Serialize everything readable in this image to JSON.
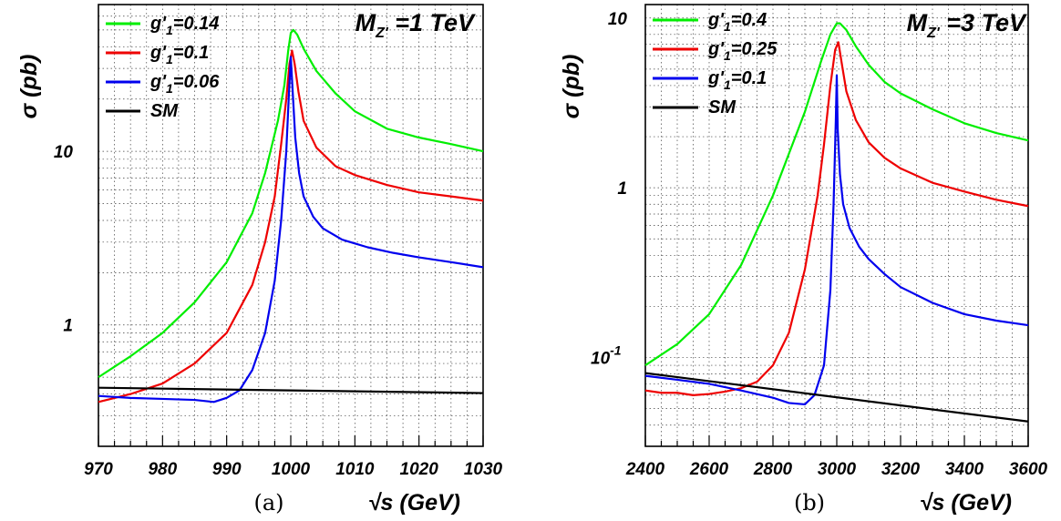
{
  "chart_data": [
    {
      "type": "line",
      "panel_label": "(a)",
      "title_main": "M",
      "title_sub": "Z'",
      "title_rest": " =1 TeV",
      "xlabel": "√s (GeV)",
      "ylabel": "σ (pb)",
      "x_scale": "linear",
      "y_scale": "log",
      "xlim": [
        970,
        1030
      ],
      "ylim": [
        0.2,
        70
      ],
      "x_ticks": [
        "970",
        "980",
        "990",
        "1000",
        "1010",
        "1020",
        "1030"
      ],
      "y_ticks": [
        {
          "value": 1,
          "label": "1"
        },
        {
          "value": 10,
          "label": "10"
        }
      ],
      "grid": true,
      "legend_position": "top-left",
      "series": [
        {
          "name": "g'1=0.14",
          "legend_main": "g'",
          "legend_sub": "1",
          "legend_rest": "=0.14",
          "color": "#00ee00",
          "x": [
            970,
            975,
            980,
            985,
            990,
            994,
            996,
            998,
            999,
            999.6,
            1000,
            1000.4,
            1001,
            1002,
            1004,
            1007,
            1010,
            1015,
            1020,
            1025,
            1030
          ],
          "y": [
            0.5,
            0.66,
            0.9,
            1.35,
            2.3,
            4.4,
            7.5,
            15,
            24,
            38,
            48,
            50,
            47,
            39,
            29,
            21.5,
            17,
            13.5,
            12,
            11,
            10
          ]
        },
        {
          "name": "g'1=0.1",
          "legend_main": "g'",
          "legend_sub": "1",
          "legend_rest": "=0.1",
          "color": "#ee0000",
          "x": [
            970,
            975,
            980,
            985,
            990,
            994,
            996,
            997.5,
            998.5,
            999.3,
            999.8,
            1000.2,
            1000.6,
            1001.2,
            1002,
            1004,
            1007,
            1010,
            1015,
            1020,
            1025,
            1030
          ],
          "y": [
            0.36,
            0.4,
            0.46,
            0.6,
            0.9,
            1.7,
            3,
            5.5,
            11,
            20,
            32,
            38,
            32,
            22,
            15,
            10.5,
            8.2,
            7.3,
            6.4,
            5.8,
            5.5,
            5.2
          ]
        },
        {
          "name": "g'1=0.06",
          "legend_main": "g'",
          "legend_sub": "1",
          "legend_rest": "=0.06",
          "color": "#0000ee",
          "x": [
            970,
            975,
            980,
            985,
            988,
            990,
            992,
            994,
            996,
            997.5,
            998.5,
            999.3,
            999.7,
            1000,
            1000.3,
            1000.7,
            1001.3,
            1002,
            1003.5,
            1005,
            1008,
            1012,
            1016,
            1020,
            1025,
            1030
          ],
          "y": [
            0.39,
            0.38,
            0.375,
            0.37,
            0.36,
            0.38,
            0.42,
            0.55,
            0.9,
            1.8,
            4,
            10,
            21,
            35,
            22,
            12,
            7.5,
            5.5,
            4.2,
            3.6,
            3.1,
            2.8,
            2.6,
            2.45,
            2.3,
            2.15
          ]
        },
        {
          "name": "SM",
          "legend_main": "SM",
          "legend_sub": "",
          "legend_rest": "",
          "color": "#000000",
          "x": [
            970,
            1030
          ],
          "y": [
            0.435,
            0.405
          ]
        }
      ]
    },
    {
      "type": "line",
      "panel_label": "(b)",
      "title_main": "M",
      "title_sub": "Z'",
      "title_rest": " =3 TeV",
      "xlabel": "√s (GeV)",
      "ylabel": "σ (pb)",
      "x_scale": "linear",
      "y_scale": "log",
      "xlim": [
        2400,
        3600
      ],
      "ylim": [
        0.03,
        12
      ],
      "x_ticks": [
        "2400",
        "2600",
        "2800",
        "3000",
        "3200",
        "3400",
        "3600"
      ],
      "y_ticks": [
        {
          "value": 0.1,
          "label": "10",
          "sup": "-1"
        },
        {
          "value": 1,
          "label": "1"
        },
        {
          "value": 10,
          "label": "10"
        }
      ],
      "grid": true,
      "legend_position": "top-left",
      "series": [
        {
          "name": "g'1=0.4",
          "legend_main": "g'",
          "legend_sub": "1",
          "legend_rest": "=0.4",
          "color": "#00ee00",
          "x": [
            2400,
            2500,
            2600,
            2700,
            2800,
            2900,
            2950,
            2980,
            3000,
            3010,
            3030,
            3060,
            3100,
            3150,
            3200,
            3300,
            3400,
            3500,
            3600
          ],
          "y": [
            0.09,
            0.12,
            0.18,
            0.35,
            0.9,
            2.8,
            5.5,
            8,
            9.3,
            9.3,
            8.5,
            6.8,
            5.3,
            4.2,
            3.6,
            2.9,
            2.4,
            2.1,
            1.9
          ]
        },
        {
          "name": "g'1=0.25",
          "legend_main": "g'",
          "legend_sub": "1",
          "legend_rest": "=0.25",
          "color": "#ee0000",
          "x": [
            2400,
            2450,
            2500,
            2550,
            2600,
            2650,
            2700,
            2750,
            2800,
            2850,
            2900,
            2940,
            2960,
            2980,
            2995,
            3005,
            3015,
            3030,
            3060,
            3100,
            3150,
            3200,
            3300,
            3400,
            3500,
            3600
          ],
          "y": [
            0.064,
            0.062,
            0.062,
            0.06,
            0.061,
            0.063,
            0.066,
            0.072,
            0.09,
            0.14,
            0.33,
            0.9,
            1.8,
            4,
            6.5,
            7.2,
            5.5,
            3.7,
            2.5,
            1.85,
            1.5,
            1.3,
            1.07,
            0.95,
            0.85,
            0.78
          ]
        },
        {
          "name": "g'1=0.1",
          "legend_main": "g'",
          "legend_sub": "1",
          "legend_rest": "=0.1",
          "color": "#0000ee",
          "x": [
            2400,
            2500,
            2600,
            2700,
            2800,
            2850,
            2900,
            2930,
            2960,
            2980,
            2990,
            2997,
            3000,
            3003,
            3010,
            3020,
            3040,
            3070,
            3100,
            3150,
            3200,
            3300,
            3400,
            3500,
            3600
          ],
          "y": [
            0.078,
            0.074,
            0.07,
            0.064,
            0.058,
            0.054,
            0.053,
            0.06,
            0.09,
            0.25,
            0.8,
            2.5,
            4.6,
            2.2,
            1.2,
            0.8,
            0.58,
            0.45,
            0.38,
            0.31,
            0.26,
            0.21,
            0.18,
            0.165,
            0.155
          ]
        },
        {
          "name": "SM",
          "legend_main": "SM",
          "legend_sub": "",
          "legend_rest": "",
          "color": "#000000",
          "x": [
            2400,
            3600
          ],
          "y": [
            0.081,
            0.042
          ]
        }
      ]
    }
  ]
}
